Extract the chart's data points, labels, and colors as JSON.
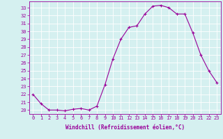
{
  "x": [
    0,
    1,
    2,
    3,
    4,
    5,
    6,
    7,
    8,
    9,
    10,
    11,
    12,
    13,
    14,
    15,
    16,
    17,
    18,
    19,
    20,
    21,
    22,
    23
  ],
  "y": [
    22.0,
    20.8,
    20.0,
    20.0,
    19.9,
    20.1,
    20.2,
    20.0,
    20.5,
    23.2,
    26.5,
    29.0,
    30.5,
    30.7,
    32.2,
    33.2,
    33.3,
    33.0,
    32.2,
    32.2,
    29.8,
    27.0,
    25.0,
    23.5
  ],
  "line_color": "#990099",
  "marker": "+",
  "xlabel": "Windchill (Refroidissement éolien,°C)",
  "ylabel_ticks": [
    20,
    21,
    22,
    23,
    24,
    25,
    26,
    27,
    28,
    29,
    30,
    31,
    32,
    33
  ],
  "ylim": [
    19.5,
    33.8
  ],
  "xlim": [
    -0.5,
    23.5
  ],
  "bg_color": "#d5f0f0",
  "grid_color": "#ffffff",
  "tick_color": "#990099",
  "label_color": "#990099",
  "xlabel_fontsize": 5.5,
  "ytick_fontsize": 5.0,
  "xtick_fontsize": 5.0
}
